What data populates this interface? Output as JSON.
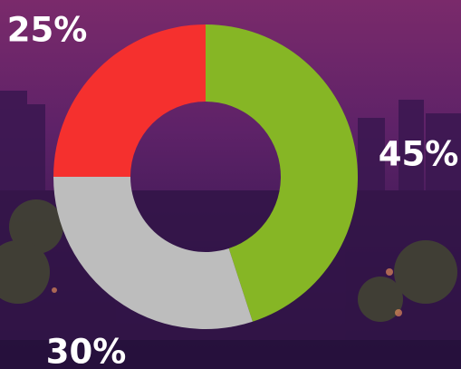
{
  "chart_data": {
    "type": "donut",
    "values": [
      45,
      30,
      25
    ],
    "value_labels": [
      "45%",
      "30%",
      "25%"
    ],
    "colors": [
      "#86b625",
      "#bdbdbd",
      "#f5302e"
    ]
  }
}
